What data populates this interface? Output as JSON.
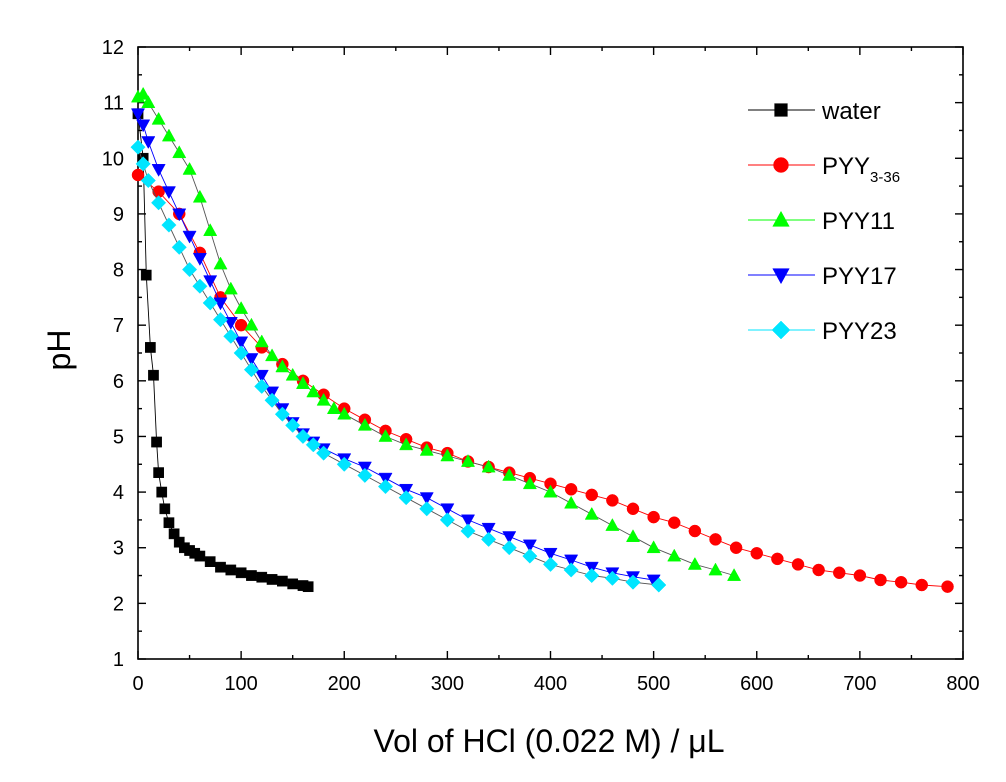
{
  "chart_data": {
    "type": "scatter",
    "title": "",
    "xlabel": "Vol of HCl (0.022 M) / μL",
    "ylabel": "pH",
    "xlim": [
      0,
      800
    ],
    "ylim": [
      1,
      12
    ],
    "x_ticks": [
      0,
      100,
      200,
      300,
      400,
      500,
      600,
      700,
      800
    ],
    "y_ticks": [
      1,
      2,
      3,
      4,
      5,
      6,
      7,
      8,
      9,
      10,
      11,
      12
    ],
    "grid": false,
    "legend_position": "top-right",
    "series": [
      {
        "name": "water",
        "legend_main": "water",
        "legend_sub": "",
        "color": "#000000",
        "marker": "square",
        "x": [
          0,
          5,
          8,
          12,
          15,
          18,
          20,
          23,
          26,
          30,
          35,
          40,
          45,
          50,
          55,
          60,
          70,
          80,
          90,
          100,
          110,
          120,
          130,
          140,
          150,
          160,
          165
        ],
        "y": [
          10.8,
          10.0,
          7.9,
          6.6,
          6.1,
          4.9,
          4.35,
          4.0,
          3.7,
          3.45,
          3.25,
          3.1,
          3.0,
          2.95,
          2.9,
          2.85,
          2.75,
          2.65,
          2.6,
          2.55,
          2.5,
          2.47,
          2.43,
          2.4,
          2.35,
          2.32,
          2.3
        ]
      },
      {
        "name": "PYY3-36",
        "legend_main": "PYY",
        "legend_sub": "3-36",
        "color": "#ff0000",
        "marker": "circle",
        "x": [
          0,
          20,
          40,
          60,
          80,
          100,
          120,
          140,
          160,
          180,
          200,
          220,
          240,
          260,
          280,
          300,
          320,
          340,
          360,
          380,
          400,
          420,
          440,
          460,
          480,
          500,
          520,
          540,
          560,
          580,
          600,
          620,
          640,
          660,
          680,
          700,
          720,
          740,
          760,
          785
        ],
        "y": [
          9.7,
          9.4,
          9.0,
          8.3,
          7.5,
          7.0,
          6.6,
          6.3,
          6.0,
          5.75,
          5.5,
          5.3,
          5.1,
          4.95,
          4.8,
          4.7,
          4.55,
          4.45,
          4.35,
          4.25,
          4.15,
          4.05,
          3.95,
          3.85,
          3.7,
          3.55,
          3.45,
          3.3,
          3.15,
          3.0,
          2.9,
          2.8,
          2.7,
          2.6,
          2.55,
          2.5,
          2.42,
          2.38,
          2.33,
          2.3
        ]
      },
      {
        "name": "PYY11",
        "legend_main": "PYY11",
        "legend_sub": "",
        "color": "#00ff00",
        "marker": "triangle-up",
        "x": [
          0,
          5,
          10,
          20,
          30,
          40,
          50,
          60,
          70,
          80,
          90,
          100,
          110,
          120,
          130,
          140,
          150,
          160,
          170,
          180,
          190,
          200,
          220,
          240,
          260,
          280,
          300,
          320,
          340,
          360,
          380,
          400,
          420,
          440,
          460,
          480,
          500,
          520,
          540,
          560,
          578
        ],
        "y": [
          11.1,
          11.15,
          11.0,
          10.7,
          10.4,
          10.1,
          9.8,
          9.3,
          8.7,
          8.1,
          7.65,
          7.3,
          7.0,
          6.7,
          6.45,
          6.25,
          6.1,
          5.95,
          5.8,
          5.65,
          5.5,
          5.4,
          5.2,
          5.0,
          4.85,
          4.75,
          4.65,
          4.55,
          4.45,
          4.3,
          4.15,
          4.0,
          3.8,
          3.6,
          3.4,
          3.2,
          3.0,
          2.85,
          2.7,
          2.6,
          2.5
        ]
      },
      {
        "name": "PYY17",
        "legend_main": "PYY17",
        "legend_sub": "",
        "color": "#0000ff",
        "marker": "triangle-down",
        "x": [
          0,
          5,
          10,
          20,
          30,
          40,
          50,
          60,
          70,
          80,
          90,
          100,
          110,
          120,
          130,
          140,
          150,
          160,
          170,
          180,
          200,
          220,
          240,
          260,
          280,
          300,
          320,
          340,
          360,
          380,
          400,
          420,
          440,
          460,
          480,
          500
        ],
        "y": [
          10.8,
          10.6,
          10.3,
          9.8,
          9.4,
          9.0,
          8.6,
          8.2,
          7.8,
          7.4,
          7.05,
          6.7,
          6.4,
          6.1,
          5.8,
          5.5,
          5.25,
          5.05,
          4.9,
          4.78,
          4.6,
          4.45,
          4.25,
          4.05,
          3.9,
          3.7,
          3.5,
          3.35,
          3.2,
          3.05,
          2.9,
          2.78,
          2.65,
          2.55,
          2.48,
          2.42
        ]
      },
      {
        "name": "PYY23",
        "legend_main": "PYY23",
        "legend_sub": "",
        "color": "#00e5ff",
        "marker": "diamond",
        "x": [
          0,
          5,
          10,
          20,
          30,
          40,
          50,
          60,
          70,
          80,
          90,
          100,
          110,
          120,
          130,
          140,
          150,
          160,
          170,
          180,
          200,
          220,
          240,
          260,
          280,
          300,
          320,
          340,
          360,
          380,
          400,
          420,
          440,
          460,
          480,
          505
        ],
        "y": [
          10.2,
          9.9,
          9.6,
          9.2,
          8.8,
          8.4,
          8.0,
          7.7,
          7.4,
          7.1,
          6.8,
          6.5,
          6.2,
          5.9,
          5.65,
          5.4,
          5.2,
          5.0,
          4.85,
          4.7,
          4.5,
          4.3,
          4.1,
          3.9,
          3.7,
          3.5,
          3.3,
          3.15,
          3.0,
          2.85,
          2.7,
          2.6,
          2.5,
          2.45,
          2.38,
          2.33
        ]
      }
    ]
  }
}
